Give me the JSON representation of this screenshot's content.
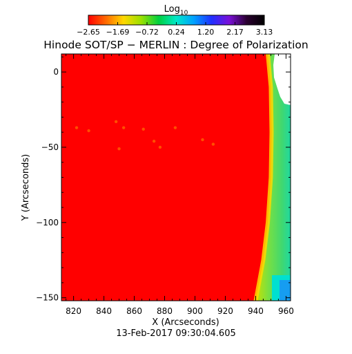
{
  "colorbar": {
    "label_base": "Log",
    "label_sub": "10",
    "ticks": [
      "−2.65",
      "−1.69",
      "−0.72",
      "0.24",
      "1.20",
      "2.17",
      "3.13"
    ],
    "range": [
      -2.65,
      3.13
    ],
    "stops": [
      "#ff0000",
      "#ff6a00",
      "#ffd800",
      "#9be000",
      "#00d040",
      "#00e8c8",
      "#00a0ff",
      "#2030ff",
      "#7a10d8",
      "#2a0030",
      "#000000"
    ]
  },
  "chart_data": {
    "type": "heatmap",
    "title": "Hinode SOT/SP − MERLIN : Degree of Polarization",
    "xlabel": "X (Arcseconds)",
    "ylabel": "Y (Arcseconds)",
    "xlim": [
      812,
      963
    ],
    "ylim": [
      -152,
      12
    ],
    "x_ticks": [
      820,
      840,
      860,
      880,
      900,
      920,
      940,
      960
    ],
    "y_ticks": [
      0,
      -50,
      -100,
      -150
    ],
    "limb": [
      {
        "y": 12,
        "x": 948
      },
      {
        "y": -10,
        "x": 950
      },
      {
        "y": -40,
        "x": 950.5
      },
      {
        "y": -70,
        "x": 950
      },
      {
        "y": -100,
        "x": 948
      },
      {
        "y": -125,
        "x": 945
      },
      {
        "y": -152,
        "x": 940
      }
    ],
    "background_level": -2.65,
    "off_limb_level": 0.5,
    "colors": {
      "disk": "#ff0000",
      "limb_edge": "#ffd800",
      "off_limb": "#7be040",
      "off_limb_far": "#00e0d0",
      "no_data": "#ffffff"
    },
    "footer": "13-Feb-2017 09:30:04.605"
  }
}
